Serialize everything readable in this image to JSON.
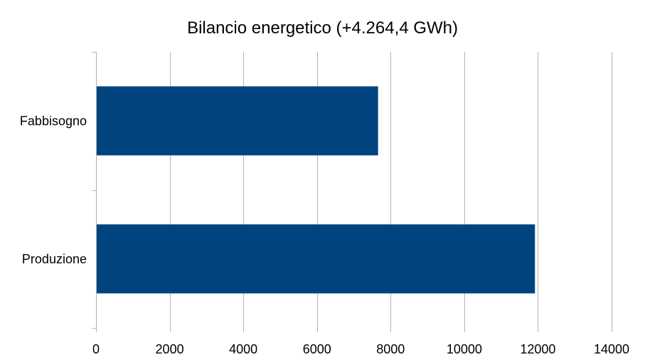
{
  "chart_data": {
    "type": "bar",
    "orientation": "horizontal",
    "title": "Bilancio energetico (+4.264,4 GWh)",
    "categories": [
      "Fabbisogno",
      "Produzione"
    ],
    "values": [
      7640,
      11900
    ],
    "xlim": [
      0,
      14000
    ],
    "xticks": [
      0,
      2000,
      4000,
      6000,
      8000,
      10000,
      12000,
      14000
    ],
    "xtick_labels": [
      "0",
      "2000",
      "4000",
      "6000",
      "8000",
      "10000",
      "12000",
      "14000"
    ],
    "grid": "vertical",
    "legend": "none",
    "bar_color": "#00447f",
    "grid_color": "#b3b3b3"
  }
}
